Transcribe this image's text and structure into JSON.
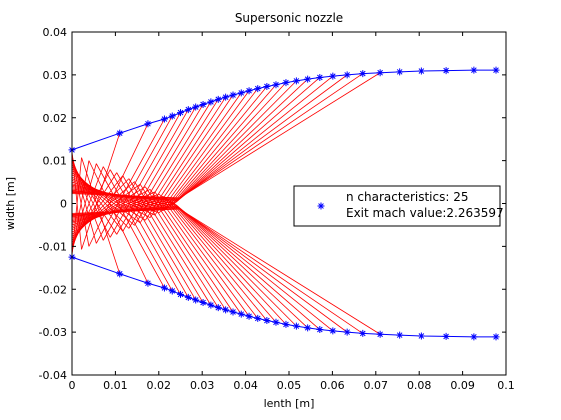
{
  "chart_data": {
    "type": "line",
    "title": "Supersonic nozzle",
    "xlabel": "lenth [m]",
    "ylabel": "width [m]",
    "xlim": [
      0,
      0.1
    ],
    "ylim": [
      -0.04,
      0.04
    ],
    "xticks": [
      "0",
      "0.01",
      "0.02",
      "0.03",
      "0.04",
      "0.05",
      "0.06",
      "0.07",
      "0.08",
      "0.09",
      "0.1"
    ],
    "yticks": [
      "0.04",
      "0.03",
      "0.02",
      "0.01",
      "0",
      "-0.01",
      "-0.02",
      "-0.03",
      "-0.04"
    ],
    "grid": false,
    "legend": {
      "location": "right",
      "lines": [
        "n characteristics: 25",
        "Exit mach value:2.263597"
      ]
    },
    "colors": {
      "wall": "#0000ff",
      "characteristics": "#ff0000"
    },
    "throat": {
      "x": 0,
      "y": 0.0125
    },
    "wall_points": {
      "x": [
        0,
        0.011,
        0.0175,
        0.0213,
        0.0231,
        0.025,
        0.0268,
        0.0285,
        0.0302,
        0.032,
        0.0337,
        0.0354,
        0.0371,
        0.039,
        0.0408,
        0.0428,
        0.0449,
        0.047,
        0.0493,
        0.0517,
        0.0543,
        0.0571,
        0.0601,
        0.0634,
        0.067,
        0.071,
        0.0755,
        0.0805,
        0.0862,
        0.0926,
        0.0977
      ],
      "y": [
        0.0125,
        0.0164,
        0.0186,
        0.0197,
        0.0204,
        0.0212,
        0.0219,
        0.0225,
        0.0231,
        0.0237,
        0.0243,
        0.0248,
        0.0253,
        0.0258,
        0.0263,
        0.0268,
        0.0273,
        0.0277,
        0.0282,
        0.0286,
        0.029,
        0.0294,
        0.0297,
        0.03,
        0.0303,
        0.0305,
        0.0307,
        0.0309,
        0.031,
        0.0311,
        0.0311
      ]
    },
    "characteristic_starts": [
      0.0121,
      0.0116,
      0.011,
      0.0104,
      0.0098,
      0.0092,
      0.0087,
      0.0082,
      0.0077,
      0.0072,
      0.0067,
      0.0062,
      0.0058,
      0.0054,
      0.005,
      0.0046,
      0.0043,
      0.004,
      0.0037,
      0.0034,
      0.0031,
      0.0029,
      0.0027,
      0.0025,
      0.0023
    ],
    "crossings": [
      {
        "x": 0.0022,
        "y": -0.0107
      },
      {
        "x": 0.0039,
        "y": -0.01
      },
      {
        "x": 0.0056,
        "y": -0.0093
      },
      {
        "x": 0.0072,
        "y": -0.0086
      },
      {
        "x": 0.0088,
        "y": -0.0079
      },
      {
        "x": 0.0103,
        "y": -0.0072
      },
      {
        "x": 0.0117,
        "y": -0.0065
      },
      {
        "x": 0.0131,
        "y": -0.0058
      },
      {
        "x": 0.0144,
        "y": -0.0051
      },
      {
        "x": 0.0157,
        "y": -0.0045
      },
      {
        "x": 0.0169,
        "y": -0.0039
      },
      {
        "x": 0.018,
        "y": -0.0033
      },
      {
        "x": 0.0191,
        "y": -0.0027
      },
      {
        "x": 0.0201,
        "y": -0.0022
      },
      {
        "x": 0.021,
        "y": -0.0017
      },
      {
        "x": 0.0218,
        "y": -0.0012
      },
      {
        "x": 0.0225,
        "y": -0.0008
      },
      {
        "x": 0.0231,
        "y": -0.0004
      },
      {
        "x": 0.0236,
        "y": 0.0
      },
      {
        "x": 0.024,
        "y": 0.0003
      },
      {
        "x": 0.0243,
        "y": 0.0006
      },
      {
        "x": 0.0245,
        "y": 0.0008
      },
      {
        "x": 0.0246,
        "y": 0.001
      },
      {
        "x": 0.0247,
        "y": 0.0012
      },
      {
        "x": 0.0248,
        "y": 0.0013
      }
    ]
  }
}
